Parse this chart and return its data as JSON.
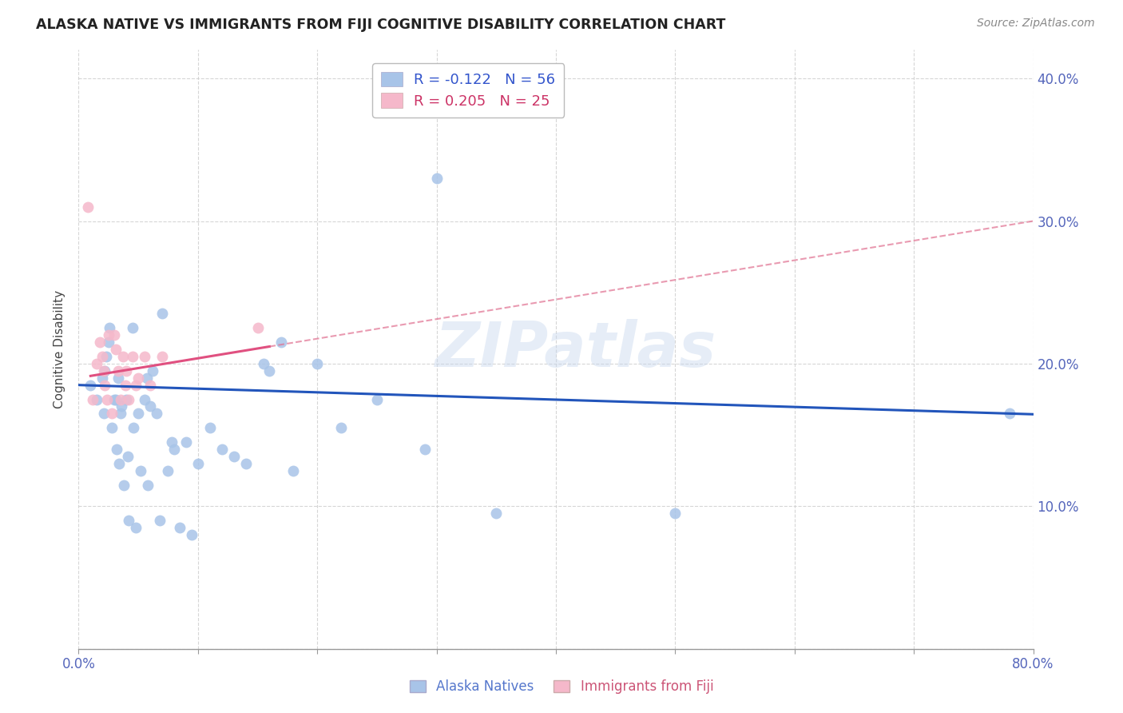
{
  "title": "ALASKA NATIVE VS IMMIGRANTS FROM FIJI COGNITIVE DISABILITY CORRELATION CHART",
  "source": "Source: ZipAtlas.com",
  "ylabel_label": "Cognitive Disability",
  "xlim": [
    0.0,
    0.8
  ],
  "ylim": [
    0.0,
    0.42
  ],
  "x_ticks": [
    0.0,
    0.1,
    0.2,
    0.3,
    0.4,
    0.5,
    0.6,
    0.7,
    0.8
  ],
  "y_ticks": [
    0.0,
    0.1,
    0.2,
    0.3,
    0.4
  ],
  "legend_r_blue": "-0.122",
  "legend_n_blue": "56",
  "legend_r_pink": "0.205",
  "legend_n_pink": "25",
  "blue_color": "#a8c4e8",
  "pink_color": "#f5b8ca",
  "line_blue_color": "#2255bb",
  "line_pink_solid_color": "#e05080",
  "line_pink_dashed_color": "#e07090",
  "watermark": "ZIPatlas",
  "alaska_x": [
    0.01,
    0.015,
    0.02,
    0.021,
    0.022,
    0.023,
    0.025,
    0.026,
    0.028,
    0.03,
    0.031,
    0.032,
    0.033,
    0.034,
    0.035,
    0.036,
    0.038,
    0.04,
    0.041,
    0.042,
    0.045,
    0.046,
    0.048,
    0.05,
    0.052,
    0.055,
    0.057,
    0.058,
    0.06,
    0.062,
    0.065,
    0.068,
    0.07,
    0.075,
    0.078,
    0.08,
    0.085,
    0.09,
    0.095,
    0.1,
    0.11,
    0.12,
    0.13,
    0.14,
    0.155,
    0.16,
    0.17,
    0.18,
    0.2,
    0.22,
    0.25,
    0.29,
    0.3,
    0.35,
    0.5,
    0.78
  ],
  "alaska_y": [
    0.185,
    0.175,
    0.19,
    0.165,
    0.195,
    0.205,
    0.215,
    0.225,
    0.155,
    0.175,
    0.175,
    0.14,
    0.19,
    0.13,
    0.165,
    0.17,
    0.115,
    0.175,
    0.135,
    0.09,
    0.225,
    0.155,
    0.085,
    0.165,
    0.125,
    0.175,
    0.19,
    0.115,
    0.17,
    0.195,
    0.165,
    0.09,
    0.235,
    0.125,
    0.145,
    0.14,
    0.085,
    0.145,
    0.08,
    0.13,
    0.155,
    0.14,
    0.135,
    0.13,
    0.2,
    0.195,
    0.215,
    0.125,
    0.2,
    0.155,
    0.175,
    0.14,
    0.33,
    0.095,
    0.095,
    0.165
  ],
  "fiji_x": [
    0.008,
    0.012,
    0.015,
    0.018,
    0.02,
    0.021,
    0.022,
    0.024,
    0.025,
    0.028,
    0.03,
    0.031,
    0.033,
    0.035,
    0.037,
    0.039,
    0.04,
    0.042,
    0.045,
    0.048,
    0.05,
    0.055,
    0.06,
    0.07,
    0.15
  ],
  "fiji_y": [
    0.31,
    0.175,
    0.2,
    0.215,
    0.205,
    0.195,
    0.185,
    0.175,
    0.22,
    0.165,
    0.22,
    0.21,
    0.195,
    0.175,
    0.205,
    0.185,
    0.195,
    0.175,
    0.205,
    0.185,
    0.19,
    0.205,
    0.185,
    0.205,
    0.225
  ]
}
